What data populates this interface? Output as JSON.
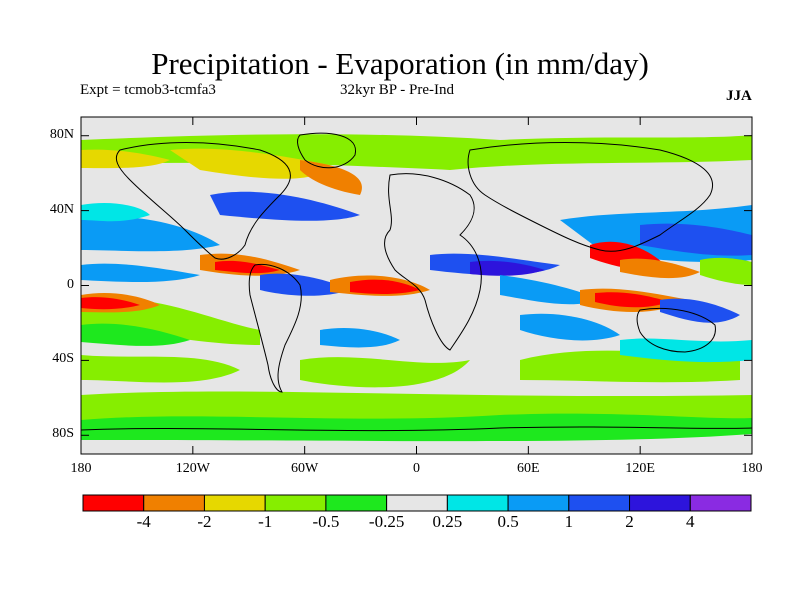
{
  "header": {
    "title": "Precipitation - Evaporation (in mm/day)",
    "experiment": "Expt = tcmob3-tcmfa3",
    "period": "32kyr BP - Pre-Ind",
    "season": "JJA"
  },
  "map": {
    "projection": "cylindrical-equidistant",
    "lon_range": [
      -180,
      180
    ],
    "lat_range": [
      -90,
      90
    ],
    "background_color": "#e6e6e6",
    "y_tick_labels": [
      "80N",
      "40N",
      "0",
      "40S",
      "80S"
    ],
    "x_tick_labels": [
      "180",
      "120W",
      "60W",
      "0",
      "60E",
      "120E",
      "180"
    ]
  },
  "colorbar": {
    "colors": [
      "#ff0000",
      "#f08000",
      "#e6d800",
      "#86ee00",
      "#1ee81e",
      "#e6e6e6",
      "#00e6e6",
      "#0a9bf5",
      "#1e50f0",
      "#2d14dc",
      "#8a2be2"
    ],
    "labels": [
      "-4",
      "-2",
      "-1",
      "-0.5",
      "-0.25",
      "0.25",
      "0.5",
      "1",
      "2",
      "4"
    ]
  }
}
